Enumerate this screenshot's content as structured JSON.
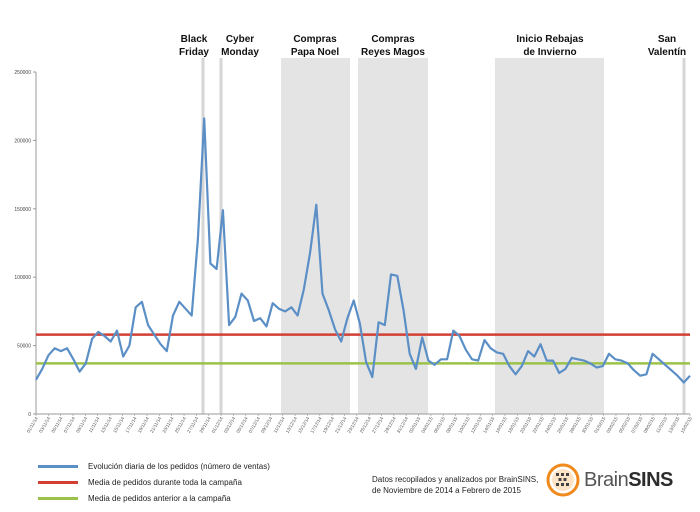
{
  "chart_data": {
    "type": "line",
    "ylim": [
      0,
      250000
    ],
    "yticks": [
      0,
      50000,
      100000,
      150000,
      200000,
      250000
    ],
    "x_labels": [
      "01/11/14",
      "03/11/14",
      "05/11/14",
      "07/11/14",
      "09/11/14",
      "11/11/14",
      "13/11/14",
      "15/11/14",
      "17/11/14",
      "19/11/14",
      "21/11/14",
      "23/11/14",
      "25/11/14",
      "27/11/14",
      "29/11/14",
      "01/12/14",
      "03/12/14",
      "05/12/14",
      "07/12/14",
      "09/12/14",
      "11/12/14",
      "13/12/14",
      "15/12/14",
      "17/12/14",
      "19/12/14",
      "21/12/14",
      "23/12/14",
      "25/12/14",
      "27/12/14",
      "29/12/14",
      "31/12/14",
      "02/01/15",
      "04/01/15",
      "06/01/15",
      "08/01/15",
      "10/01/15",
      "12/01/15",
      "14/01/15",
      "16/01/15",
      "18/01/15",
      "20/01/15",
      "22/01/15",
      "24/01/15",
      "26/01/15",
      "28/01/15",
      "30/01/15",
      "01/02/15",
      "03/02/15",
      "05/02/15",
      "07/02/15",
      "09/02/15",
      "11/02/15",
      "13/02/15",
      "15/02/15"
    ],
    "series": [
      {
        "name": "Evolución diaria de los pedidos (número de ventas)",
        "color": "#5b8fc6",
        "values": [
          25000,
          33000,
          43000,
          48000,
          46000,
          48000,
          40000,
          31000,
          37000,
          55000,
          60000,
          57000,
          53000,
          61000,
          42000,
          50000,
          78000,
          82000,
          65000,
          58000,
          51000,
          46000,
          72000,
          82000,
          77000,
          72000,
          128000,
          216000,
          110000,
          106000,
          149000,
          65000,
          71000,
          88000,
          83000,
          68000,
          70000,
          64000,
          81000,
          77000,
          75000,
          78000,
          72000,
          91000,
          118000,
          153000,
          88000,
          76000,
          62000,
          53000,
          70000,
          83000,
          66000,
          38000,
          27000,
          67000,
          65000,
          102000,
          101000,
          76000,
          44000,
          33000,
          56000,
          39000,
          36000,
          40000,
          40000,
          61000,
          57000,
          47000,
          40000,
          39000,
          54000,
          48000,
          45000,
          44000,
          35000,
          29000,
          35000,
          46000,
          42000,
          51000,
          39000,
          39000,
          30000,
          33000,
          41000,
          40000,
          39000,
          37000,
          34000,
          35000,
          44000,
          40000,
          39000,
          37000,
          32000,
          28000,
          29000,
          44000,
          40000,
          36000,
          32000,
          28000,
          23000,
          28000
        ]
      },
      {
        "name": "Media de pedidos durante toda la campaña",
        "color": "#d23f35",
        "value": 58000
      },
      {
        "name": "Media de pedidos anterior a la campaña",
        "color": "#9bc24a",
        "value": 37000
      }
    ],
    "annotations": [
      {
        "label": [
          "Black",
          "Friday"
        ]
      },
      {
        "label": [
          "Cyber",
          "Monday"
        ]
      },
      {
        "label": [
          "Compras",
          "Papa Noel"
        ]
      },
      {
        "label": [
          "Compras",
          "Reyes Magos"
        ]
      },
      {
        "label": [
          "Inicio Rebajas",
          "de Invierno"
        ]
      },
      {
        "label": [
          "San",
          "Valentín"
        ]
      }
    ]
  },
  "legend": [
    {
      "label": "Evolución diaria de los pedidos (número de ventas)",
      "color": "#5b8fc6"
    },
    {
      "label": "Media de pedidos durante toda la campaña",
      "color": "#d23f35"
    },
    {
      "label": "Media de pedidos anterior a la campaña",
      "color": "#9bc24a"
    }
  ],
  "credits": [
    "Datos recopilados y analizados por BrainSINS,",
    "de Noviembre de 2014 a Febrero de 2015"
  ],
  "logo": {
    "part1": "Brain",
    "part2": "SINS",
    "accent": "#f08a1c"
  }
}
